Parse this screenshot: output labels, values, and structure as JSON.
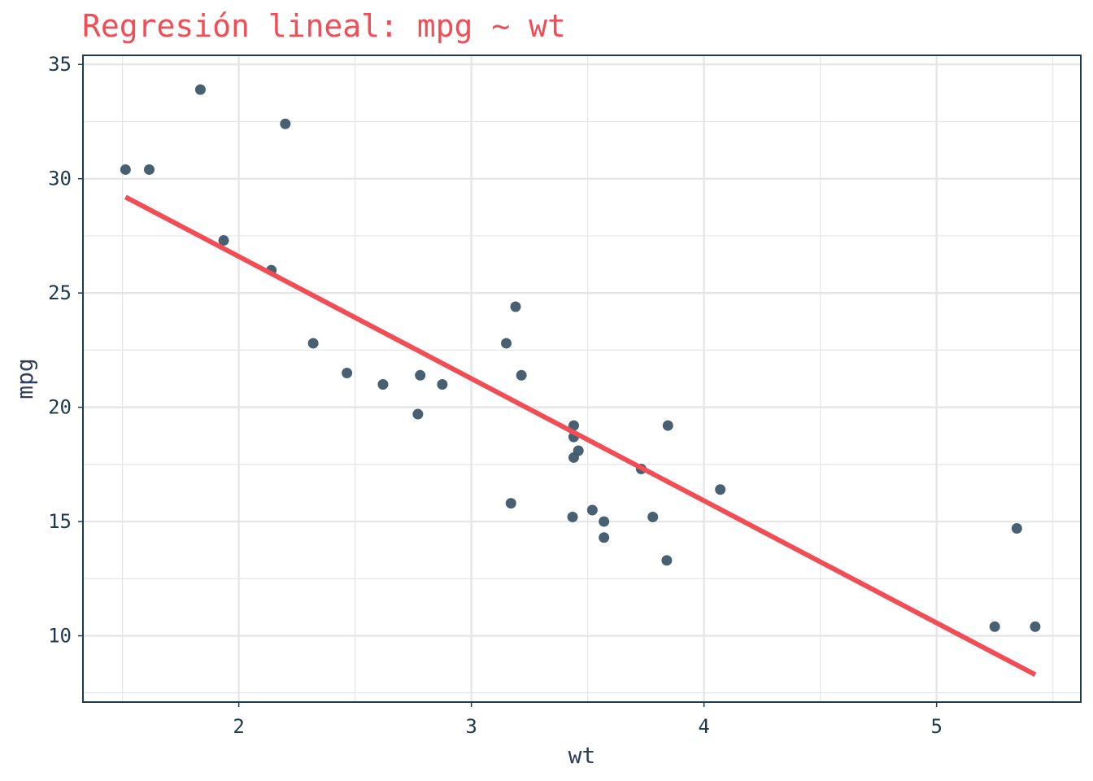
{
  "chart_data": {
    "type": "scatter",
    "title": "Regresión lineal: mpg ~ wt",
    "xlabel": "wt",
    "ylabel": "mpg",
    "xlim": [
      1.33,
      5.62
    ],
    "ylim": [
      7.1,
      35.4
    ],
    "x_ticks": [
      2,
      3,
      4,
      5
    ],
    "y_ticks": [
      10,
      15,
      20,
      25,
      30,
      35
    ],
    "x_minor_ticks": [
      1.5,
      2.5,
      3.5,
      4.5,
      5.5
    ],
    "y_minor_ticks": [
      7.5,
      12.5,
      17.5,
      22.5,
      27.5,
      32.5
    ],
    "grid": true,
    "legend": "none",
    "colors": {
      "title": "#f24c55",
      "points": "#3d586c",
      "line": "#f24c55",
      "axis": "#1d3a4f",
      "grid": "#e6e6e6"
    },
    "series": [
      {
        "type": "scatter",
        "x": [
          2.62,
          2.875,
          2.32,
          3.215,
          3.44,
          3.46,
          3.57,
          3.19,
          3.15,
          3.44,
          3.44,
          4.07,
          3.73,
          3.78,
          5.25,
          5.424,
          5.345,
          2.2,
          1.615,
          1.835,
          2.465,
          3.52,
          3.435,
          3.84,
          3.845,
          1.935,
          2.14,
          1.513,
          3.17,
          2.77,
          3.57,
          2.78
        ],
        "y": [
          21.0,
          21.0,
          22.8,
          21.4,
          18.7,
          18.1,
          14.3,
          24.4,
          22.8,
          19.2,
          17.8,
          16.4,
          17.3,
          15.2,
          10.4,
          10.4,
          14.7,
          32.4,
          30.4,
          33.9,
          21.5,
          15.5,
          15.2,
          13.3,
          19.2,
          27.3,
          26.0,
          30.4,
          15.8,
          19.7,
          15.0,
          21.4
        ]
      },
      {
        "type": "line",
        "x": [
          1.513,
          5.424
        ],
        "y": [
          29.2,
          8.3
        ]
      }
    ]
  }
}
